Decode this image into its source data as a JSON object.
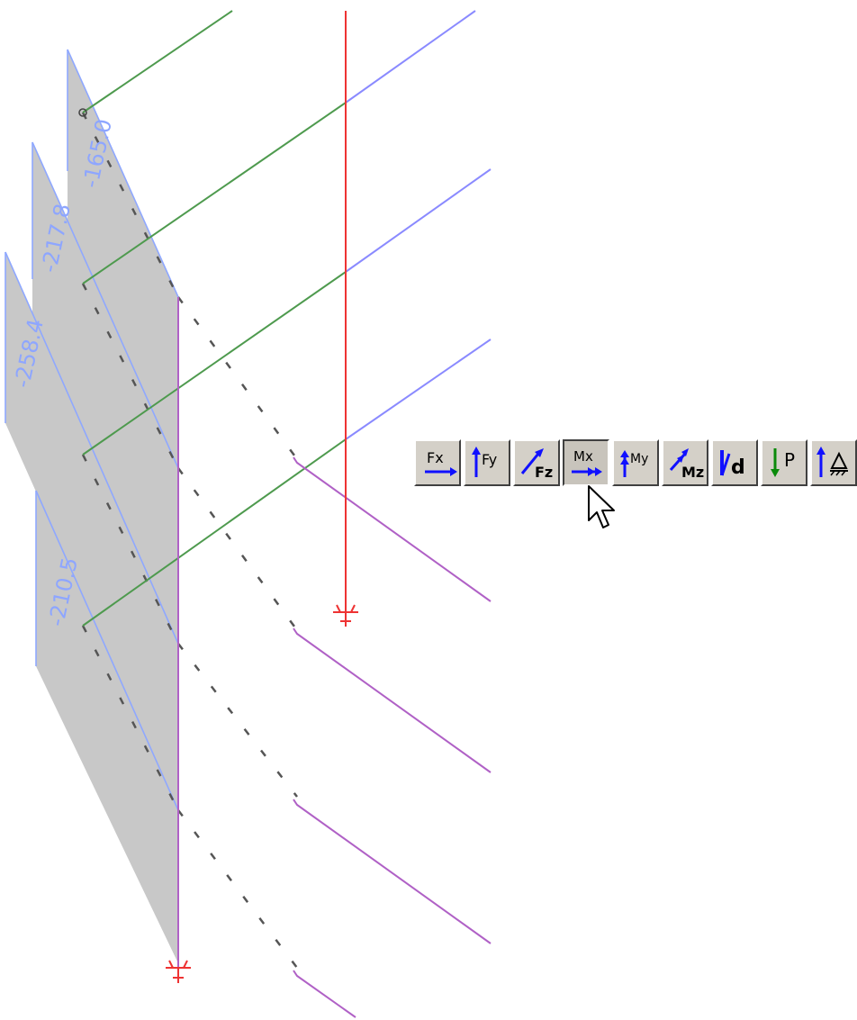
{
  "result_labels": [
    "-165.0",
    "-217.8",
    "-258.4",
    "-210.5"
  ],
  "toolbar": {
    "buttons": [
      {
        "id": "fx",
        "label": "Fx",
        "icon": "arrow-right-icon"
      },
      {
        "id": "fy",
        "label": "Fy",
        "icon": "arrow-up-icon"
      },
      {
        "id": "fz",
        "label": "Fz",
        "icon": "arrow-diagonal-icon"
      },
      {
        "id": "mx",
        "label": "Mx",
        "icon": "double-arrow-right-icon",
        "pressed": true
      },
      {
        "id": "my",
        "label": "My",
        "icon": "double-arrow-up-icon"
      },
      {
        "id": "mz",
        "label": "Mz",
        "icon": "double-arrow-diagonal-icon"
      },
      {
        "id": "vd",
        "label": "d",
        "icon": "deflection-icon"
      },
      {
        "id": "p",
        "label": "P",
        "icon": "arrow-down-icon"
      },
      {
        "id": "support",
        "label": "",
        "icon": "support-reaction-icon"
      }
    ]
  },
  "colors": {
    "fill": "#c8c8c8",
    "fill_outline": "#8fa8ff",
    "label": "#8ea6ff",
    "green": "#4e9a4e",
    "blue": "#8a8aff",
    "red": "#ee3333",
    "purple": "#b061c6",
    "dash": "#555555",
    "icon_blue": "#1010ff",
    "icon_green": "#0a8a0a"
  }
}
